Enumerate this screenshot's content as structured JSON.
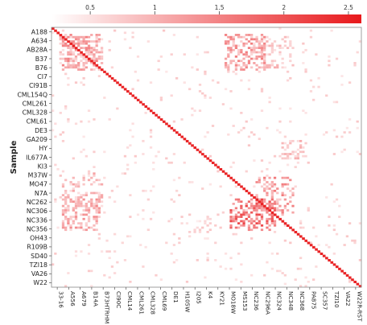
{
  "chart_data": {
    "type": "heatmap",
    "ylabel": "Sample",
    "xlabel": "",
    "colorbar": {
      "range": [
        0.2,
        2.6
      ],
      "ticks": [
        "0.5",
        "1",
        "1.5",
        "2",
        "2.5"
      ],
      "tick_values": [
        0.5,
        1,
        1.5,
        2,
        2.5
      ],
      "low_color": "#ffffff",
      "high_color": "#e8191c",
      "position": "top"
    },
    "y_labels": [
      "A188",
      "A634",
      "AB28A",
      "B37",
      "B76",
      "CI7",
      "CI91B",
      "CML154Q",
      "CML261",
      "CML328",
      "CML61",
      "DE3",
      "GA209",
      "HY",
      "IL677A",
      "KI3",
      "M37W",
      "MO47",
      "N7A",
      "NC262",
      "NC306",
      "NC336",
      "NC356",
      "OH43",
      "R109B",
      "SD40",
      "TZI18",
      "VA26",
      "W22"
    ],
    "x_labels": [
      "33-16",
      "A556",
      "A679",
      "B14A",
      "B73HTRHM",
      "CI90C",
      "CML14",
      "CML261",
      "CML328",
      "CML69",
      "DE1",
      "H105W",
      "I205",
      "K4",
      "KY21",
      "MO18W",
      "MS153",
      "NC236",
      "NC296A",
      "NC324",
      "NC348",
      "NC368",
      "PA875",
      "SC357",
      "TZI10",
      "VA22",
      "W22R-RST"
    ],
    "diagonal_value": 2.5,
    "hot_blocks": [
      {
        "rows": [
          0.5,
          4.8
        ],
        "cols": [
          0.8,
          4.2
        ],
        "value": 1.3
      },
      {
        "rows": [
          0.5,
          4.8
        ],
        "cols": [
          15.0,
          18.5
        ],
        "value": 1.3
      },
      {
        "rows": [
          19.0,
          22.5
        ],
        "cols": [
          0.8,
          4.2
        ],
        "value": 1.2
      },
      {
        "rows": [
          19.0,
          22.5
        ],
        "cols": [
          15.5,
          19.5
        ],
        "value": 1.8
      },
      {
        "rows": [
          12.5,
          14.5
        ],
        "cols": [
          20.0,
          22.0
        ],
        "value": 0.9
      }
    ],
    "grid": false
  }
}
